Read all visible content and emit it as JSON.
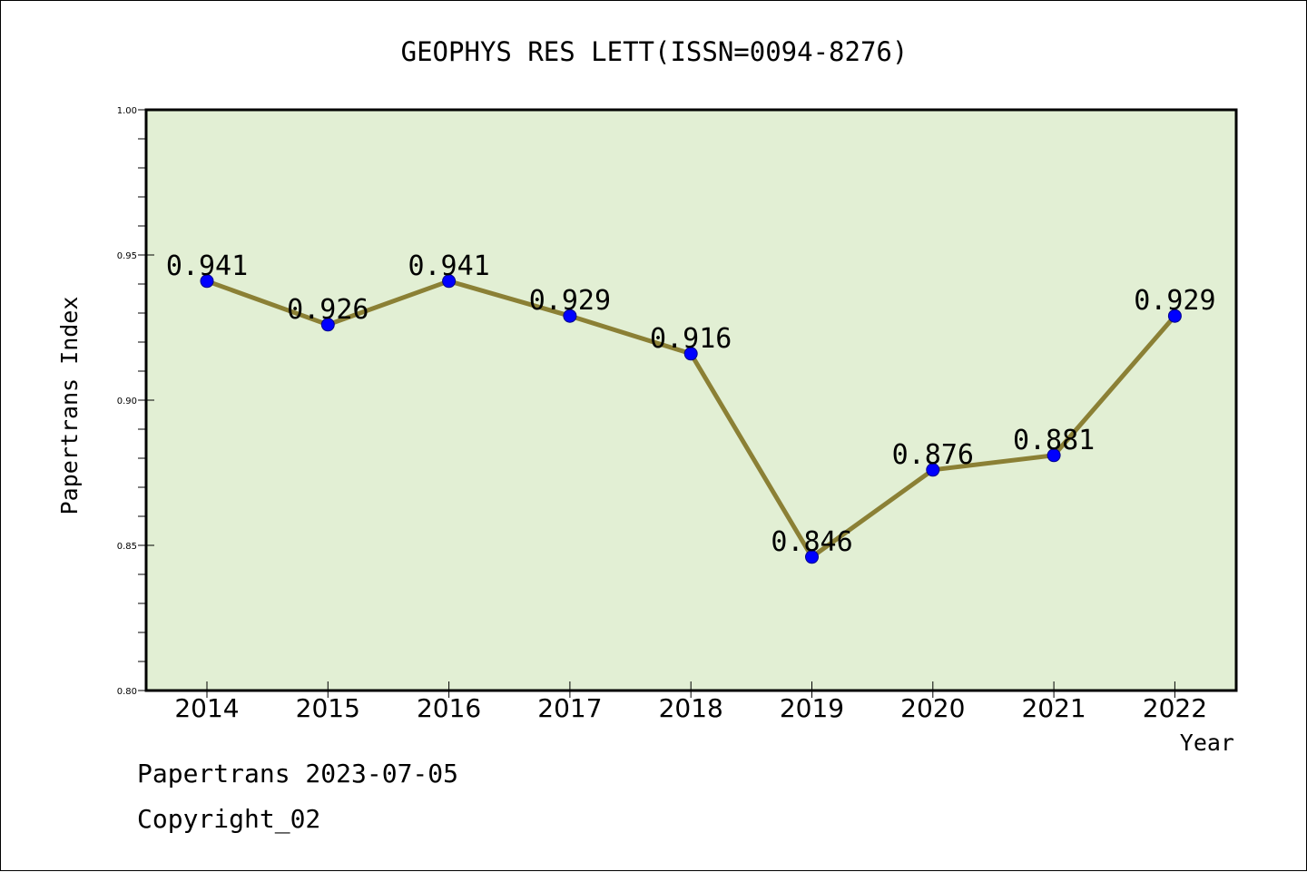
{
  "chart_data": {
    "type": "line",
    "title": "GEOPHYS RES LETT(ISSN=0094-8276)",
    "xlabel": "Year",
    "ylabel": "Papertrans Index",
    "x": [
      "2014",
      "2015",
      "2016",
      "2017",
      "2018",
      "2019",
      "2020",
      "2021",
      "2022"
    ],
    "series": [
      {
        "values": [
          0.941,
          0.926,
          0.941,
          0.929,
          0.916,
          0.846,
          0.876,
          0.881,
          0.929
        ],
        "data_labels": [
          "0.941",
          "0.926",
          "0.941",
          "0.929",
          "0.916",
          "0.846",
          "0.876",
          "0.881",
          "0.929"
        ]
      }
    ],
    "ylim": [
      0.8,
      1.0
    ],
    "yticks": [
      "0.80",
      "0.85",
      "0.90",
      "0.95",
      "1.00"
    ],
    "grid": false,
    "colors": {
      "plot_background": "#e2efd4",
      "line": "#8b8035",
      "marker": "#0000ff",
      "axes": "#000000"
    }
  },
  "footer": {
    "line1": "Papertrans 2023-07-05",
    "line2": "Copyright_02"
  }
}
